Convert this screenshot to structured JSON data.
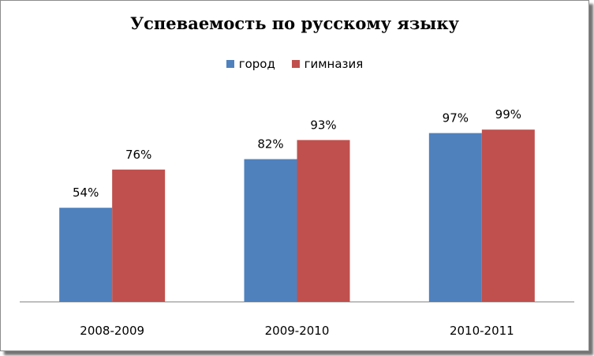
{
  "chart_data": {
    "type": "bar",
    "title": "Успеваемость по русскому языку",
    "categories": [
      "2008-2009",
      "2009-2010",
      "2010-2011"
    ],
    "series": [
      {
        "name": "город",
        "color": "#4F81BD",
        "values": [
          54,
          82,
          97
        ],
        "labels": [
          "54%",
          "82%",
          "97%"
        ]
      },
      {
        "name": "гимназия",
        "color": "#C0504D",
        "values": [
          76,
          93,
          99
        ],
        "labels": [
          "76%",
          "93%",
          "99%"
        ]
      }
    ],
    "unit": "%",
    "ylim": [
      0,
      100
    ],
    "legend_position": "top",
    "grid": false
  }
}
